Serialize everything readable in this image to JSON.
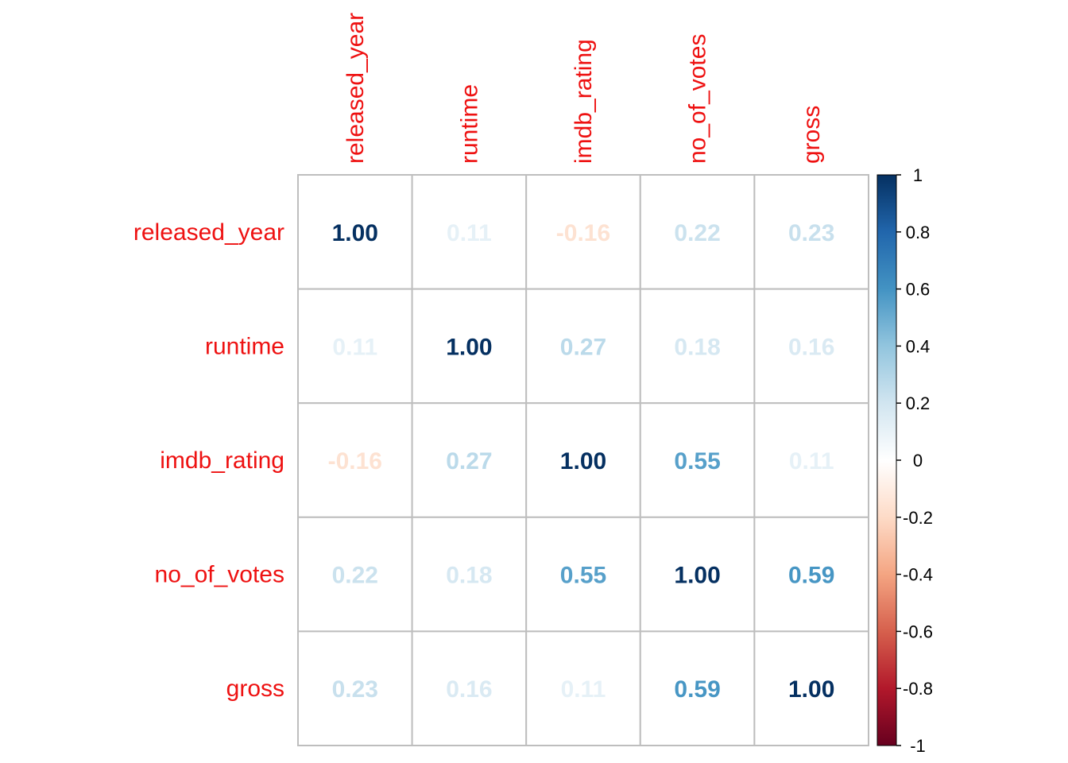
{
  "chart_data": {
    "type": "heatmap",
    "variables": [
      "released_year",
      "runtime",
      "imdb_rating",
      "no_of_votes",
      "gross"
    ],
    "matrix": [
      [
        1.0,
        0.11,
        -0.16,
        0.22,
        0.23
      ],
      [
        0.11,
        1.0,
        0.27,
        0.18,
        0.16
      ],
      [
        -0.16,
        0.27,
        1.0,
        0.55,
        0.11
      ],
      [
        0.22,
        0.18,
        0.55,
        1.0,
        0.59
      ],
      [
        0.23,
        0.16,
        0.11,
        0.59,
        1.0
      ]
    ],
    "cell_labels": [
      [
        "1.00",
        "0.11",
        "-0.16",
        "0.22",
        "0.23"
      ],
      [
        "0.11",
        "1.00",
        "0.27",
        "0.18",
        "0.16"
      ],
      [
        "-0.16",
        "0.27",
        "1.00",
        "0.55",
        "0.11"
      ],
      [
        "0.22",
        "0.18",
        "0.55",
        "1.00",
        "0.59"
      ],
      [
        "0.23",
        "0.16",
        "0.11",
        "0.59",
        "1.00"
      ]
    ],
    "legend": {
      "placement": "right",
      "range": [
        -1,
        1
      ],
      "ticks": [
        1,
        0.8,
        0.6,
        0.4,
        0.2,
        0,
        -0.2,
        -0.4,
        -0.6,
        -0.8,
        -1
      ],
      "tick_labels": [
        "1",
        "0.8",
        "0.6",
        "0.4",
        "0.2",
        "0",
        "-0.2",
        "-0.4",
        "-0.6",
        "-0.8",
        "-1"
      ]
    },
    "colors": {
      "label": "#ee1111",
      "grid": "#bebebe",
      "scale": [
        "#67001f",
        "#b2182b",
        "#d6604d",
        "#f4a582",
        "#fddbc7",
        "#ffffff",
        "#d1e5f0",
        "#92c5de",
        "#4393c3",
        "#2166ac",
        "#053061"
      ]
    }
  }
}
